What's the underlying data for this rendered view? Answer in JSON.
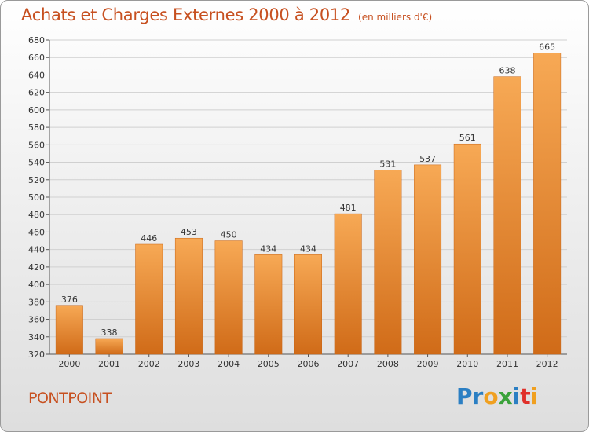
{
  "header": {
    "title": "Achats et Charges Externes 2000 à 2012",
    "unit": "(en milliers d'€)"
  },
  "footer": {
    "place": "PONTPOINT",
    "brand": [
      {
        "ch": "P",
        "color": "#2b7fc3"
      },
      {
        "ch": "r",
        "color": "#2b7fc3"
      },
      {
        "ch": "o",
        "color": "#f0a020"
      },
      {
        "ch": "x",
        "color": "#3aa23a"
      },
      {
        "ch": "i",
        "color": "#2b7fc3"
      },
      {
        "ch": "t",
        "color": "#e0302a"
      },
      {
        "ch": "i",
        "color": "#f0a020"
      }
    ]
  },
  "colors": {
    "bar_top": "#f7a955",
    "bar_bottom": "#d06b18",
    "bar_edge": "#c86414",
    "title": "#c75020",
    "grid": "#d0d0d0"
  },
  "chart_data": {
    "type": "bar",
    "title": "Achats et Charges Externes 2000 à 2012",
    "subtitle": "(en milliers d'€)",
    "categories": [
      "2000",
      "2001",
      "2002",
      "2003",
      "2004",
      "2005",
      "2006",
      "2007",
      "2008",
      "2009",
      "2010",
      "2011",
      "2012"
    ],
    "values": [
      376,
      338,
      446,
      453,
      450,
      434,
      434,
      481,
      531,
      537,
      561,
      638,
      665
    ],
    "ylim": [
      320,
      680
    ],
    "ytick_step": 20,
    "grid": true,
    "data_labels": true
  }
}
